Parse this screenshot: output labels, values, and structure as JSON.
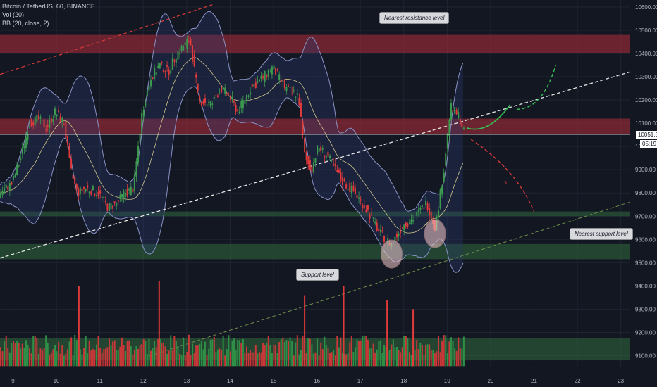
{
  "header": {
    "symbol_line": "Bitcoin / TetherUS, 60, BINANCE",
    "volume_indicator": "Vol (20)",
    "bb_indicator": "BB (20, close, 2)"
  },
  "annotations": {
    "resistance": "Nearest resistance level",
    "support_nearest": "Nearest support level",
    "support": "Support level",
    "question_mark": "?"
  },
  "price_tags": {
    "last_price": "10051.55",
    "countdown": "05:19",
    "last_price_bg": "#ffffff",
    "countdown_bg": "#ffffff"
  },
  "colors": {
    "background": "#131722",
    "up": "#26a69a",
    "down": "#ef5350",
    "up_candle": "#3c9a4f",
    "down_candle": "#e03a3a",
    "resistance_zone": "#b22d3a",
    "support_zone": "#2f6a3e",
    "bb_band": "#2a3a6e",
    "bb_line": "#8a92c6",
    "basis": "#d0c68a",
    "trend_white": "#e6e6e6",
    "trend_green": "#2fa84f",
    "trend_red": "#d23a3a"
  },
  "chart_data": {
    "type": "candlestick",
    "x_tick_labels": [
      "9",
      "10",
      "11",
      "12",
      "13",
      "14",
      "15",
      "16",
      "17",
      "18",
      "19",
      "20",
      "21",
      "22",
      "23"
    ],
    "y_tick_labels": [
      "10600.00",
      "10500.00",
      "10400.00",
      "10300.00",
      "10200.00",
      "10100.00",
      "10000.00",
      "9900.00",
      "9800.00",
      "9700.00",
      "9600.00",
      "9500.00",
      "9400.00",
      "9300.00",
      "9200.00",
      "9100.00"
    ],
    "y_range": [
      9050,
      10630
    ],
    "x_range_days": [
      8.7,
      23.2
    ],
    "last_price": 10051.55,
    "zones": [
      {
        "kind": "resistance",
        "from": 10400,
        "to": 10480
      },
      {
        "kind": "resistance",
        "from": 10055,
        "to": 10120
      },
      {
        "kind": "support",
        "from": 9700,
        "to": 9720
      },
      {
        "kind": "support",
        "from": 9515,
        "to": 9580
      }
    ],
    "price_path": [
      [
        8.7,
        9800
      ],
      [
        9.0,
        9840
      ],
      [
        9.2,
        9950
      ],
      [
        9.4,
        10100
      ],
      [
        9.6,
        10120
      ],
      [
        9.8,
        10080
      ],
      [
        10.0,
        10150
      ],
      [
        10.2,
        10100
      ],
      [
        10.35,
        9900
      ],
      [
        10.5,
        9800
      ],
      [
        10.7,
        9820
      ],
      [
        11.0,
        9800
      ],
      [
        11.2,
        9740
      ],
      [
        11.4,
        9750
      ],
      [
        11.6,
        9800
      ],
      [
        11.8,
        9820
      ],
      [
        12.0,
        10150
      ],
      [
        12.2,
        10300
      ],
      [
        12.4,
        10350
      ],
      [
        12.6,
        10320
      ],
      [
        12.8,
        10400
      ],
      [
        13.1,
        10460
      ],
      [
        13.3,
        10200
      ],
      [
        13.6,
        10180
      ],
      [
        13.8,
        10250
      ],
      [
        14.0,
        10220
      ],
      [
        14.2,
        10150
      ],
      [
        14.5,
        10250
      ],
      [
        14.8,
        10300
      ],
      [
        15.0,
        10340
      ],
      [
        15.3,
        10250
      ],
      [
        15.6,
        10220
      ],
      [
        15.75,
        9950
      ],
      [
        15.9,
        9900
      ],
      [
        16.05,
        10000
      ],
      [
        16.3,
        9950
      ],
      [
        16.6,
        9850
      ],
      [
        16.9,
        9800
      ],
      [
        17.2,
        9720
      ],
      [
        17.5,
        9620
      ],
      [
        17.75,
        9580
      ],
      [
        18.0,
        9660
      ],
      [
        18.3,
        9700
      ],
      [
        18.55,
        9760
      ],
      [
        18.75,
        9650
      ],
      [
        18.95,
        9900
      ],
      [
        19.1,
        10170
      ],
      [
        19.3,
        10130
      ],
      [
        19.4,
        10070
      ]
    ],
    "volume_spikes": [
      {
        "day": 10.5,
        "height": 9400
      },
      {
        "day": 12.35,
        "height": 9420
      },
      {
        "day": 15.7,
        "height": 9360
      },
      {
        "day": 16.6,
        "height": 9400
      },
      {
        "day": 17.6,
        "height": 9340
      },
      {
        "day": 18.2,
        "height": 9300
      }
    ]
  }
}
